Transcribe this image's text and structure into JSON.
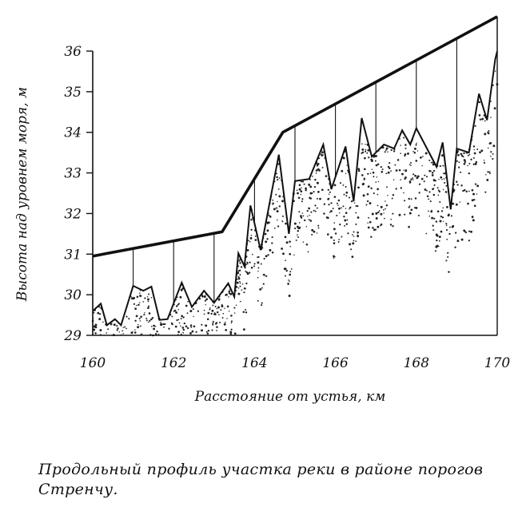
{
  "chart_data": {
    "type": "line",
    "title": "",
    "xlabel": "Расстояние от устья, км",
    "ylabel": "Высота над уровнем моря, м",
    "xlim": [
      160,
      170
    ],
    "ylim": [
      29,
      36
    ],
    "x_ticks": [
      "160",
      "162",
      "164",
      "166",
      "168",
      "170"
    ],
    "y_ticks": [
      "29",
      "30",
      "31",
      "32",
      "33",
      "34",
      "35",
      "36"
    ],
    "grid": false,
    "series": [
      {
        "name": "",
        "role": "upper profile",
        "x": [
          160.0,
          163.2,
          164.7,
          170.0
        ],
        "y": [
          30.95,
          31.55,
          34.0,
          36.85
        ]
      },
      {
        "name": "",
        "role": "riverbed profile",
        "x": [
          160.0,
          160.2,
          160.35,
          160.55,
          160.7,
          161.0,
          161.25,
          161.45,
          161.65,
          161.85,
          162.2,
          162.45,
          162.75,
          163.0,
          163.35,
          163.5,
          163.6,
          163.75,
          163.9,
          164.15,
          164.6,
          164.85,
          165.0,
          165.35,
          165.7,
          165.9,
          166.25,
          166.45,
          166.65,
          166.9,
          167.2,
          167.45,
          167.65,
          167.85,
          168.0,
          168.5,
          168.65,
          168.85,
          169.0,
          169.3,
          169.55,
          169.75,
          169.95,
          170.0
        ],
        "y": [
          29.6,
          29.78,
          29.25,
          29.4,
          29.25,
          30.22,
          30.1,
          30.2,
          29.38,
          29.4,
          30.3,
          29.7,
          30.1,
          29.8,
          30.28,
          29.95,
          31.02,
          30.7,
          32.2,
          31.1,
          33.45,
          31.5,
          32.8,
          32.85,
          33.7,
          32.6,
          33.65,
          32.3,
          34.35,
          33.4,
          33.7,
          33.6,
          34.05,
          33.7,
          34.1,
          33.15,
          33.75,
          32.1,
          33.6,
          33.5,
          34.95,
          34.3,
          35.8,
          36.0
        ]
      }
    ],
    "caption": "Продольный профиль участка реки в районе порогов Стренчу."
  }
}
